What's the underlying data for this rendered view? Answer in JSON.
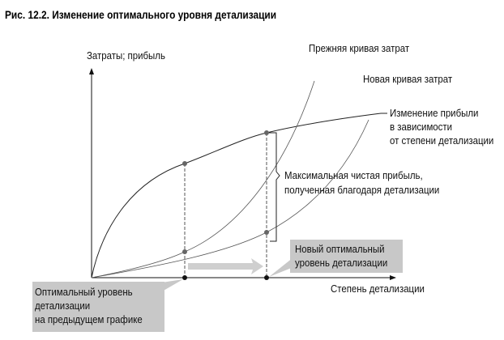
{
  "title": "Рис. 12.2. Изменение оптимального уровня детализации",
  "y_axis_label": "Затраты; прибыль",
  "x_axis_label": "Степень детализации",
  "curves": {
    "old_cost": "Прежняя кривая затрат",
    "new_cost": "Новая кривая затрат",
    "profit": [
      "Изменение прибыли",
      "в зависимости",
      "от степени детализации"
    ]
  },
  "bracket_label": [
    "Максимальная чистая прибыль,",
    "полученная благодаря детализации"
  ],
  "new_optimum_label": [
    "Новый оптимальный",
    "уровень детализации"
  ],
  "old_optimum_label": [
    "Оптимальный уровень",
    "детализации",
    "на предыдущем графике"
  ],
  "colors": {
    "callout": "#c8c8c8",
    "curve": "#555555",
    "dot": "#666666"
  }
}
